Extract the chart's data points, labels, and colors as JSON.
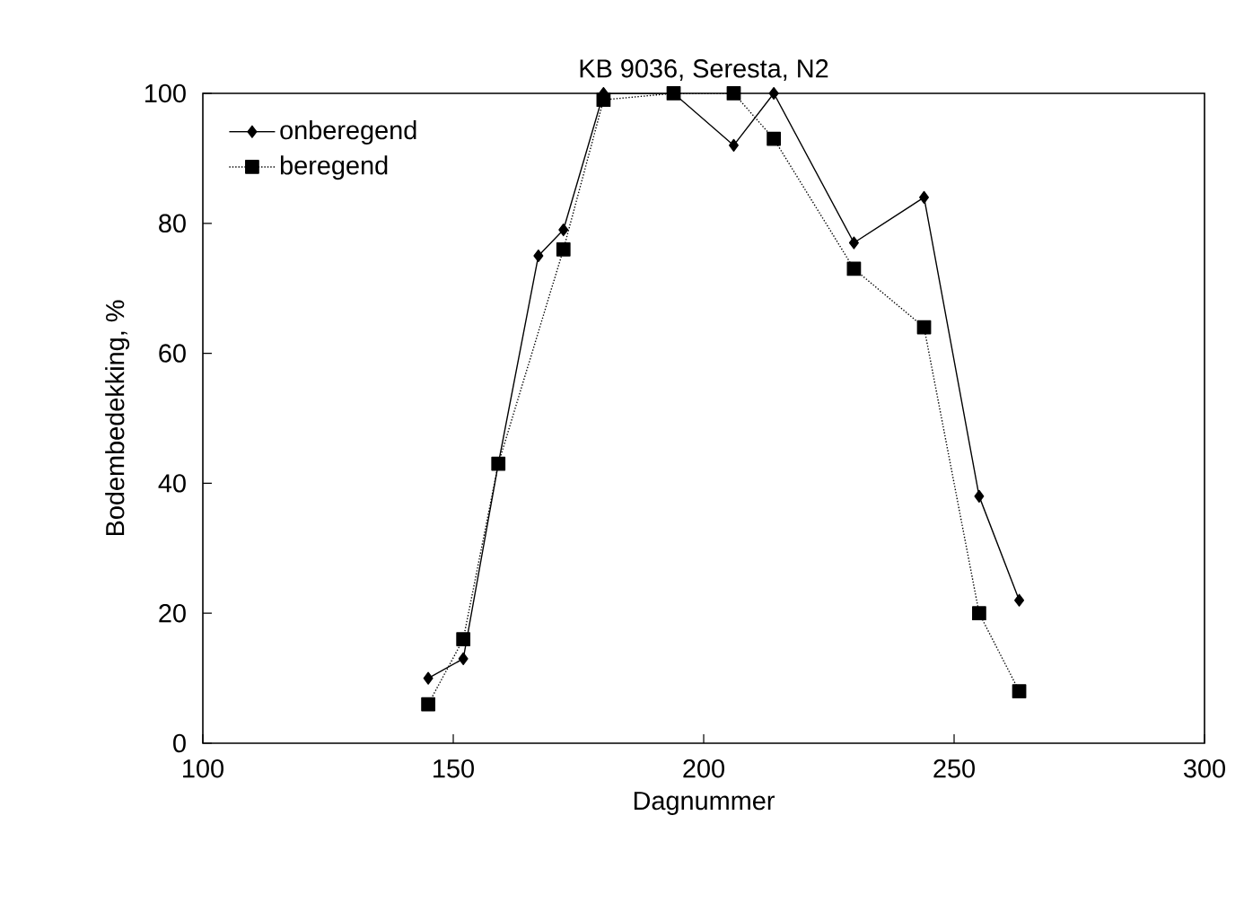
{
  "chart_data": {
    "type": "line",
    "title": "KB 9036, Seresta, N2",
    "xlabel": "Dagnummer",
    "ylabel": "Bodembedekking, %",
    "xlim": [
      100,
      300
    ],
    "xticks": [
      100,
      150,
      200,
      250,
      300
    ],
    "ylim": [
      0,
      100
    ],
    "yticks": [
      0,
      20,
      40,
      60,
      80,
      100
    ],
    "grid": false,
    "legend": "top left",
    "series": [
      {
        "name": "onberegend",
        "color": "#000000",
        "marker": "diamond",
        "line_style": "solid",
        "x": [
          145,
          152,
          159,
          167,
          172,
          180,
          194,
          206,
          214,
          230,
          244,
          255,
          263
        ],
        "values": [
          10,
          13,
          43,
          75,
          79,
          100,
          100,
          92,
          100,
          77,
          84,
          38,
          22
        ]
      },
      {
        "name": "beregend",
        "color": "#000000",
        "marker": "square",
        "line_style": "dotted",
        "x": [
          145,
          152,
          159,
          172,
          180,
          194,
          206,
          214,
          230,
          244,
          255,
          263
        ],
        "values": [
          6,
          16,
          43,
          76,
          99,
          100,
          100,
          93,
          73,
          64,
          20,
          8
        ]
      }
    ]
  }
}
